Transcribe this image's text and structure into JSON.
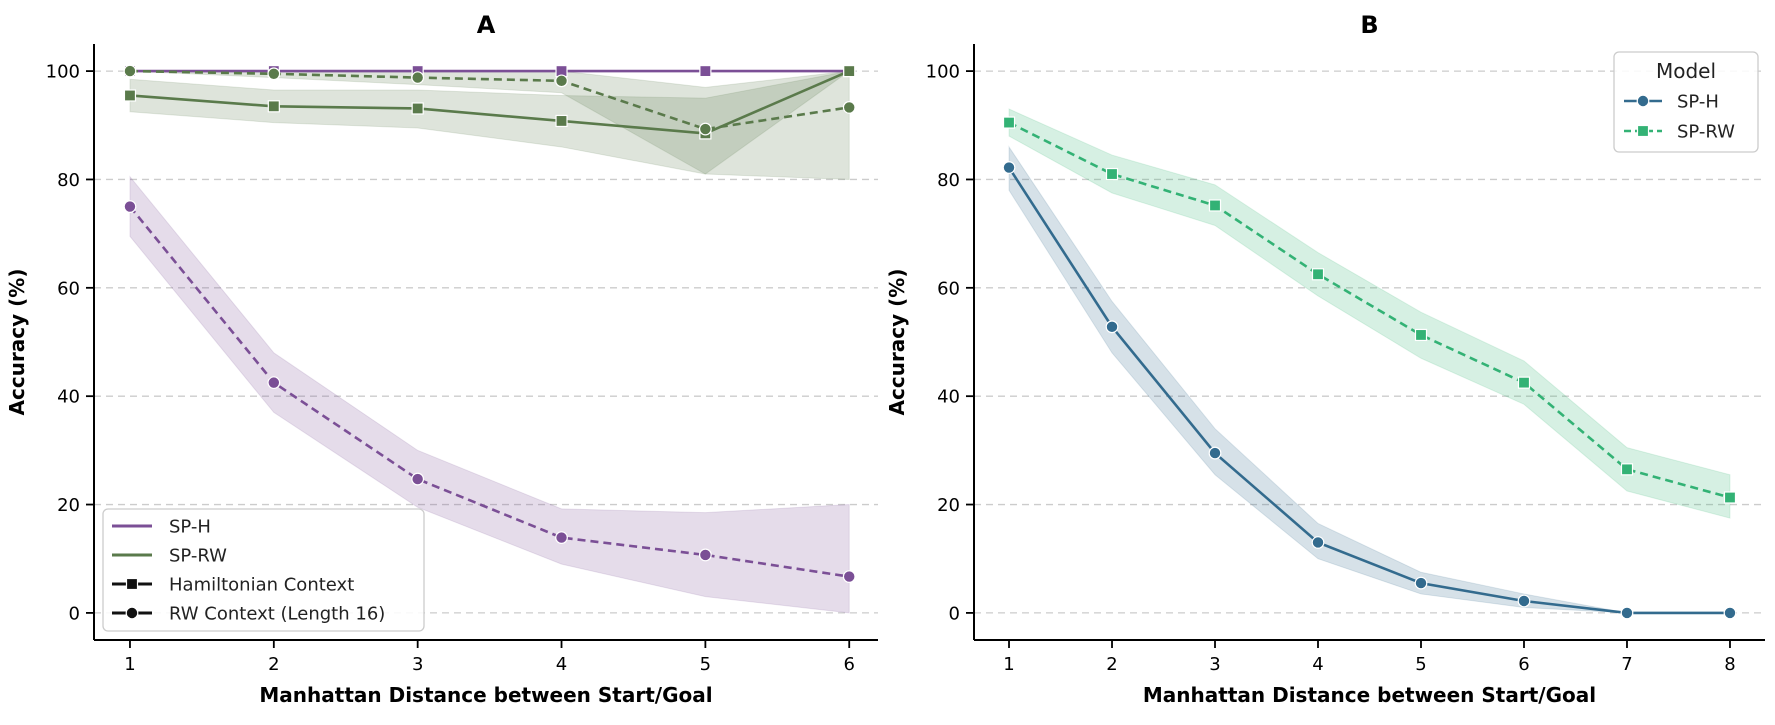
{
  "figure": {
    "panels": [
      "A",
      "B"
    ]
  },
  "chart_data": [
    {
      "type": "line",
      "title": "A",
      "xlabel": "Manhattan Distance between Start/Goal",
      "ylabel": "Accuracy (%)",
      "x": [
        1,
        2,
        3,
        4,
        5,
        6
      ],
      "xlim": [
        0.75,
        6.2
      ],
      "ylim": [
        -5,
        105
      ],
      "xticks": [
        1,
        2,
        3,
        4,
        5,
        6
      ],
      "yticks": [
        0,
        20,
        40,
        60,
        80,
        100
      ],
      "grid": "y-dashed",
      "series": [
        {
          "name": "SP-H",
          "context": "Hamiltonian Context",
          "color": "#7b4f96",
          "dash": "solid",
          "marker": "square",
          "values": [
            100,
            100,
            100,
            100,
            100,
            100
          ],
          "lower": [
            100,
            100,
            100,
            100,
            100,
            100
          ],
          "upper": [
            100,
            100,
            100,
            100,
            100,
            100
          ]
        },
        {
          "name": "SP-H",
          "context": "RW Context (Length 16)",
          "color": "#7b4f96",
          "dash": "dashed",
          "marker": "circle",
          "values": [
            75,
            42.5,
            24.7,
            13.9,
            10.7,
            6.7
          ],
          "lower": [
            69.5,
            37,
            19.5,
            9,
            3,
            0
          ],
          "upper": [
            80.5,
            48,
            30,
            19.2,
            18.5,
            20
          ]
        },
        {
          "name": "SP-RW",
          "context": "Hamiltonian Context",
          "color": "#5a7a4b",
          "dash": "solid",
          "marker": "square",
          "values": [
            95.5,
            93.5,
            93.1,
            90.8,
            88.5,
            100
          ],
          "lower": [
            92.5,
            90.5,
            89.5,
            86,
            81,
            100
          ],
          "upper": [
            98.5,
            96.5,
            96.5,
            95.5,
            95,
            100
          ]
        },
        {
          "name": "SP-RW",
          "context": "RW Context (Length 16)",
          "color": "#5a7a4b",
          "dash": "dashed",
          "marker": "circle",
          "values": [
            100,
            99.5,
            98.8,
            98.2,
            89.3,
            93.3
          ],
          "lower": [
            100,
            98.8,
            97.5,
            96,
            81,
            80
          ],
          "upper": [
            100,
            100,
            100,
            100,
            97,
            100
          ]
        }
      ],
      "legend": {
        "position": "lower-left",
        "items": [
          {
            "label": "SP-H",
            "kind": "line",
            "color": "#7b4f96"
          },
          {
            "label": "SP-RW",
            "kind": "line",
            "color": "#5a7a4b"
          },
          {
            "label": "Hamiltonian Context",
            "kind": "marker",
            "marker": "square",
            "color": "#111111"
          },
          {
            "label": "RW Context (Length 16)",
            "kind": "marker",
            "marker": "circle",
            "color": "#111111"
          }
        ]
      }
    },
    {
      "type": "line",
      "title": "B",
      "xlabel": "Manhattan Distance between Start/Goal",
      "ylabel": "Accuracy (%)",
      "x": [
        1,
        2,
        3,
        4,
        5,
        6,
        7,
        8
      ],
      "xlim": [
        0.66,
        8.34
      ],
      "ylim": [
        -5,
        105
      ],
      "xticks": [
        1,
        2,
        3,
        4,
        5,
        6,
        7,
        8
      ],
      "yticks": [
        0,
        20,
        40,
        60,
        80,
        100
      ],
      "grid": "y-dashed",
      "series": [
        {
          "name": "SP-H",
          "color": "#336b8e",
          "dash": "solid",
          "marker": "circle",
          "values": [
            82.2,
            52.8,
            29.5,
            13,
            5.5,
            2.2,
            0,
            0
          ],
          "lower": [
            78,
            48,
            25.5,
            10,
            3.5,
            1,
            0,
            0
          ],
          "upper": [
            86,
            57.5,
            34,
            16.5,
            7.5,
            3.5,
            0,
            0
          ]
        },
        {
          "name": "SP-RW",
          "color": "#33b275",
          "dash": "dashed",
          "marker": "square",
          "values": [
            90.5,
            81,
            75.2,
            62.5,
            51.3,
            42.5,
            26.5,
            21.3
          ],
          "lower": [
            88,
            77.5,
            71.5,
            58.5,
            47,
            38.5,
            22.5,
            17.5
          ],
          "upper": [
            93,
            84.5,
            79,
            66.5,
            55.5,
            46.5,
            30.5,
            25.5
          ]
        }
      ],
      "legend": {
        "position": "top-right",
        "title": "Model",
        "items": [
          {
            "label": "SP-H",
            "kind": "line+marker",
            "marker": "circle",
            "dash": "solid",
            "color": "#336b8e"
          },
          {
            "label": "SP-RW",
            "kind": "line+marker",
            "marker": "square",
            "dash": "dashed",
            "color": "#33b275"
          }
        ]
      }
    }
  ]
}
